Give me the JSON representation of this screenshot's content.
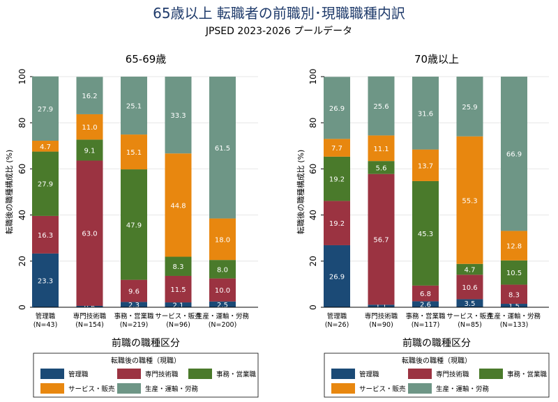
{
  "figure": {
    "title": "65歳以上 転職者の前職別･現職職種内訳",
    "subtitle": "JPSED 2023-2026 プールデータ"
  },
  "colors": {
    "管理職": "#1b4a76",
    "専門技術職": "#9b3341",
    "事務・営業職": "#4a7a2b",
    "サービス・販売": "#e8870f",
    "生産・運輸・労務": "#6e9686"
  },
  "chart_data": [
    {
      "type": "bar",
      "stacked": true,
      "panel_title": "65-69歳",
      "xlabel": "前職の職種区分",
      "ylabel": "転職後の職種構成比 (%)",
      "ylim": [
        0,
        100
      ],
      "yticks": [
        0,
        20,
        40,
        60,
        80,
        100
      ],
      "categories": [
        "管理職",
        "専門技術職",
        "事務・営業職",
        "サービス・販売",
        "生産・運輸・労務"
      ],
      "category_n": [
        "(N=43)",
        "(N=154)",
        "(N=219)",
        "(N=96)",
        "(N=200)"
      ],
      "legend_title": "転職後の職種（現職）",
      "series": [
        {
          "name": "管理職",
          "values": [
            23.3,
            0.6,
            2.3,
            2.1,
            2.5
          ]
        },
        {
          "name": "専門技術職",
          "values": [
            16.3,
            63.0,
            9.6,
            11.5,
            10.0
          ]
        },
        {
          "name": "事務・営業職",
          "values": [
            27.9,
            9.1,
            47.9,
            8.3,
            8.0
          ]
        },
        {
          "name": "サービス・販売",
          "values": [
            4.7,
            11.0,
            15.1,
            44.8,
            18.0
          ]
        },
        {
          "name": "生産・運輸・労務",
          "values": [
            27.9,
            16.2,
            25.1,
            33.3,
            61.5
          ]
        }
      ]
    },
    {
      "type": "bar",
      "stacked": true,
      "panel_title": "70歳以上",
      "xlabel": "前職の職種区分",
      "ylabel": "転職後の職種構成比 (%)",
      "ylim": [
        0,
        100
      ],
      "yticks": [
        0,
        20,
        40,
        60,
        80,
        100
      ],
      "categories": [
        "管理職",
        "専門技術職",
        "事務・営業職",
        "サービス・販売",
        "生産・運輸・労務"
      ],
      "category_n": [
        "(N=26)",
        "(N=90)",
        "(N=117)",
        "(N=85)",
        "(N=133)"
      ],
      "legend_title": "転職後の職種（現職）",
      "series": [
        {
          "name": "管理職",
          "values": [
            26.9,
            1.1,
            2.6,
            3.5,
            1.5
          ]
        },
        {
          "name": "専門技術職",
          "values": [
            19.2,
            56.7,
            6.8,
            10.6,
            8.3
          ]
        },
        {
          "name": "事務・営業職",
          "values": [
            19.2,
            5.6,
            45.3,
            4.7,
            10.5
          ]
        },
        {
          "name": "サービス・販売",
          "values": [
            7.7,
            11.1,
            13.7,
            55.3,
            12.8
          ]
        },
        {
          "name": "生産・運輸・労務",
          "values": [
            26.9,
            25.6,
            31.6,
            25.9,
            66.9
          ]
        }
      ]
    }
  ]
}
